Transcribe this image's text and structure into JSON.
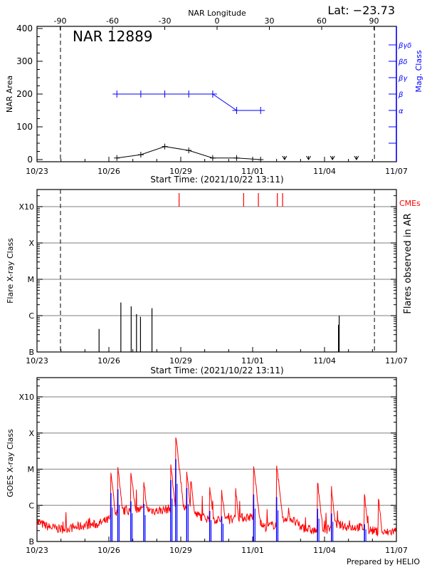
{
  "header": {
    "lat_label": "Lat: −23.73",
    "lon_axis_label": "NAR Longitude",
    "lon_ticks": [
      "-90",
      "-60",
      "-30",
      "0",
      "30",
      "60",
      "90"
    ],
    "ar_title": "NAR 12889"
  },
  "footer": {
    "prepared_by": "Prepared by HELIO"
  },
  "colors": {
    "area": "#000000",
    "mag_class": "#0000ff",
    "cme": "#ff0000",
    "goes_long": "#ff0000",
    "goes_short": "#0000ff",
    "grid": "#999999"
  },
  "chart_data": [
    {
      "type": "line",
      "panel": "area",
      "title": "NAR 12889",
      "xlabel": "Start Time: (2021/10/22 13:11)",
      "ylabel": "NAR Area",
      "y2label": "Mag. Class",
      "x_ticks": [
        "10/23",
        "10/26",
        "10/29",
        "11/01",
        "11/04",
        "11/07"
      ],
      "ylim": [
        0,
        400
      ],
      "y_ticks": [
        "0",
        "100",
        "200",
        "300",
        "400"
      ],
      "mag_class_ticks": [
        {
          "label": "α",
          "value": 150
        },
        {
          "label": "β",
          "value": 200
        },
        {
          "label": "βγ",
          "value": 250
        },
        {
          "label": "βδ",
          "value": 300
        },
        {
          "label": "βγδ",
          "value": 350
        }
      ],
      "limb_crossings": [
        "10/23 23:30",
        "11/06 02:00"
      ],
      "area": {
        "x": [
          "10/26 08:00",
          "10/27 08:00",
          "10/28 08:00",
          "10/29 08:00",
          "10/30 08:00",
          "10/31 08:00",
          "11/01 08:00"
        ],
        "values": [
          5,
          15,
          40,
          28,
          5,
          5,
          0
        ]
      },
      "area_not_visible": {
        "x": [
          "11/02 08:00",
          "11/03 08:00",
          "11/04 08:00",
          "11/05 08:00"
        ],
        "values": [
          0,
          0,
          0,
          0
        ]
      },
      "mag_class": {
        "x": [
          "10/26 08:00",
          "10/27 08:00",
          "10/28 08:00",
          "10/29 08:00",
          "10/30 08:00",
          "10/31 08:00",
          "11/01 08:00"
        ],
        "values": [
          "β",
          "β",
          "β",
          "β",
          "β",
          "α",
          "α"
        ]
      }
    },
    {
      "type": "bar",
      "panel": "flares",
      "xlabel": "Start Time: (2021/10/22 13:11)",
      "ylabel": "Flare X-ray Class",
      "y2label": "Flares observed in AR",
      "cme_label": "CMEs",
      "x_ticks": [
        "10/23",
        "10/26",
        "10/29",
        "11/01",
        "11/04",
        "11/07"
      ],
      "y_ticks": [
        "B",
        "C",
        "M",
        "X",
        "X10"
      ],
      "grid": true,
      "flares": [
        {
          "time": "10/25 14:10",
          "class": "B4.3"
        },
        {
          "time": "10/26 12:00",
          "class": "C2.3"
        },
        {
          "time": "10/26 22:20",
          "class": "C1.8"
        },
        {
          "time": "10/27 03:40",
          "class": "C1.1"
        },
        {
          "time": "10/27 07:40",
          "class": "B9.3"
        },
        {
          "time": "10/27 19:10",
          "class": "C1.6"
        },
        {
          "time": "11/04 14:00",
          "class": "B5.6"
        },
        {
          "time": "11/04 14:40",
          "class": "C1.0"
        }
      ],
      "cmes": [
        "10/28 22:20",
        "10/31 15:00",
        "11/01 05:45",
        "11/02 00:45",
        "11/02 06:00"
      ]
    },
    {
      "type": "line",
      "panel": "goes",
      "ylabel": "GOES X-ray Class",
      "x_ticks": [
        "10/23",
        "10/26",
        "10/29",
        "11/01",
        "11/04",
        "11/07"
      ],
      "y_ticks": [
        "B",
        "C",
        "M",
        "X",
        "X10"
      ],
      "grid": true,
      "long_channel_background": {
        "x": [
          "10/23 00:00",
          "10/23 12:00",
          "10/24 00:00",
          "10/24 12:00",
          "10/25 00:00",
          "10/25 12:00",
          "10/26 00:00",
          "10/26 12:00",
          "10/27 00:00",
          "10/27 12:00",
          "10/28 00:00",
          "10/28 12:00",
          "10/29 00:00",
          "10/29 12:00",
          "10/30 00:00",
          "10/30 12:00",
          "10/31 00:00",
          "10/31 12:00",
          "11/01 00:00",
          "11/01 12:00",
          "11/02 00:00",
          "11/02 12:00",
          "11/03 00:00",
          "11/03 12:00",
          "11/04 00:00",
          "11/04 12:00",
          "11/05 00:00",
          "11/05 12:00",
          "11/06 00:00",
          "11/06 12:00",
          "11/07 00:00"
        ],
        "values": [
          "B3.5",
          "B2.5",
          "B2.2",
          "B2.4",
          "B2.8",
          "B3.0",
          "B4.0",
          "B7.0",
          "B7.0",
          "B8.0",
          "B7.0",
          "B8.0",
          "C1.1",
          "B6.0",
          "B4.5",
          "B4.0",
          "B4.0",
          "B4.5",
          "B5.0",
          "B2.5",
          "B3.0",
          "B5.0",
          "B2.5",
          "B2.0",
          "B2.0",
          "B3.0",
          "B2.5",
          "B2.5",
          "B2.0",
          "B1.7",
          "B2.0"
        ]
      },
      "long_channel_peaks": [
        {
          "time": "10/26 02:00",
          "class": "C9.1"
        },
        {
          "time": "10/26 09:00",
          "class": "M1.4"
        },
        {
          "time": "10/26 22:00",
          "class": "M1.1"
        },
        {
          "time": "10/27 11:00",
          "class": "C5.8"
        },
        {
          "time": "10/28 14:00",
          "class": "M1.5"
        },
        {
          "time": "10/28 19:00",
          "class": "X1.0"
        },
        {
          "time": "10/29 06:00",
          "class": "C9.0"
        },
        {
          "time": "10/29 10:00",
          "class": "C6.0"
        },
        {
          "time": "10/30 05:00",
          "class": "C4.0"
        },
        {
          "time": "10/30 17:00",
          "class": "C3.2"
        },
        {
          "time": "10/31 07:00",
          "class": "C3.0"
        },
        {
          "time": "11/01 01:00",
          "class": "M1.6"
        },
        {
          "time": "11/02 00:00",
          "class": "M1.7"
        },
        {
          "time": "11/03 17:00",
          "class": "C5.5"
        },
        {
          "time": "11/04 07:00",
          "class": "C3.6"
        },
        {
          "time": "11/05 16:00",
          "class": "C2.4"
        },
        {
          "time": "11/06 06:00",
          "class": "C1.8"
        }
      ],
      "short_channel_peaks": [
        {
          "time": "10/26 02:00",
          "class": "C2.2"
        },
        {
          "time": "10/26 09:00",
          "class": "C2.8"
        },
        {
          "time": "10/26 22:00",
          "class": "C1.3"
        },
        {
          "time": "10/27 11:00",
          "class": "C1.1"
        },
        {
          "time": "10/28 14:00",
          "class": "C5.0"
        },
        {
          "time": "10/28 19:00",
          "class": "M1.9"
        },
        {
          "time": "10/29 06:00",
          "class": "C3.0"
        },
        {
          "time": "10/30 05:00",
          "class": "B7.0"
        },
        {
          "time": "10/30 17:00",
          "class": "B5.0"
        },
        {
          "time": "11/01 01:00",
          "class": "C2.0"
        },
        {
          "time": "11/02 00:00",
          "class": "C1.7"
        },
        {
          "time": "11/03 17:00",
          "class": "B8.0"
        },
        {
          "time": "11/04 07:00",
          "class": "B6.0"
        },
        {
          "time": "11/05 16:00",
          "class": "B3.0"
        }
      ]
    }
  ]
}
